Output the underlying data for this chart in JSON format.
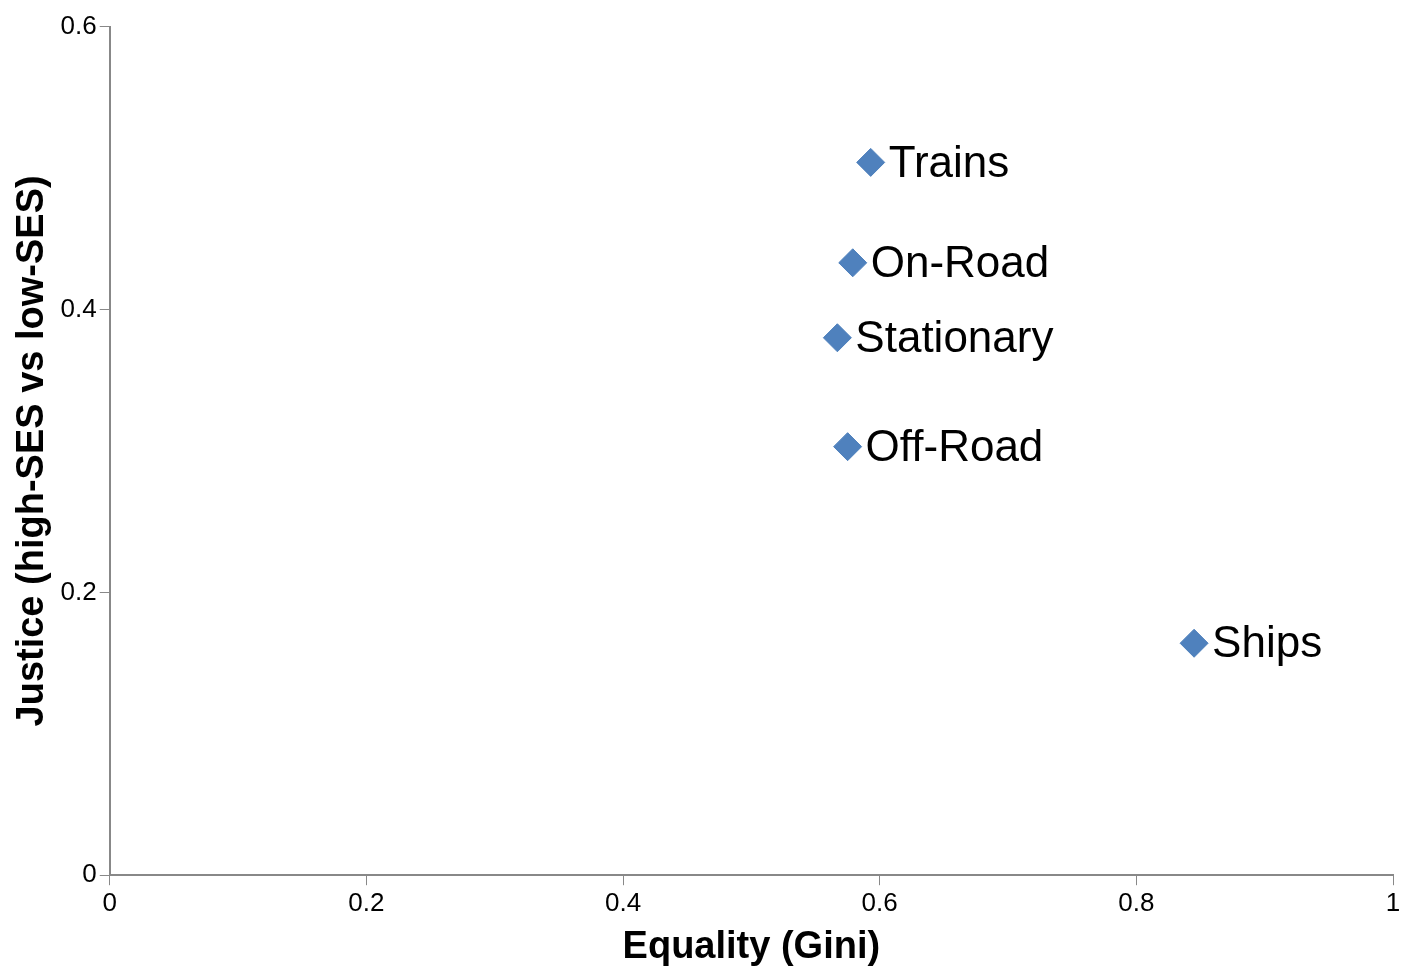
{
  "chart_data": {
    "type": "scatter",
    "xlabel": "Equality (Gini)",
    "ylabel": "Justice (high-SES vs low-SES)",
    "series": [
      {
        "name": "Trains",
        "color": "#4f81bd",
        "x": [
          0.593
        ],
        "values": [
          0.504
        ]
      },
      {
        "name": "On-Road",
        "color": "#4f81bd",
        "x": [
          0.579
        ],
        "values": [
          0.433
        ]
      },
      {
        "name": "Stationary",
        "color": "#4f81bd",
        "x": [
          0.567
        ],
        "values": [
          0.38
        ]
      },
      {
        "name": "Off-Road",
        "color": "#4f81bd",
        "x": [
          0.575
        ],
        "values": [
          0.303
        ]
      },
      {
        "name": "Ships",
        "color": "#4f81bd",
        "x": [
          0.845
        ],
        "values": [
          0.164
        ]
      }
    ],
    "xlim": [
      0,
      1
    ],
    "ylim": [
      0,
      0.6
    ],
    "xticks": [
      0,
      0.2,
      0.4,
      0.6,
      0.8,
      1
    ],
    "yticks": [
      0,
      0.2,
      0.4,
      0.6
    ],
    "marker": "diamond",
    "grid": false,
    "legend": false
  }
}
